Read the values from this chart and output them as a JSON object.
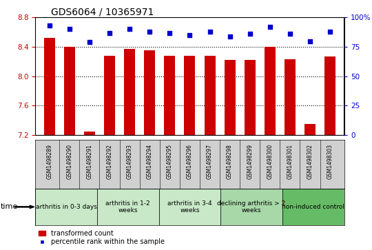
{
  "title": "GDS6064 / 10365971",
  "samples": [
    "GSM1498289",
    "GSM1498290",
    "GSM1498291",
    "GSM1498292",
    "GSM1498293",
    "GSM1498294",
    "GSM1498295",
    "GSM1498296",
    "GSM1498297",
    "GSM1498298",
    "GSM1498299",
    "GSM1498300",
    "GSM1498301",
    "GSM1498302",
    "GSM1498303"
  ],
  "transformed_count": [
    8.52,
    8.4,
    7.25,
    8.28,
    8.37,
    8.35,
    8.28,
    8.28,
    8.28,
    8.22,
    8.22,
    8.4,
    8.23,
    7.35,
    8.27
  ],
  "percentile_rank": [
    93,
    90,
    79,
    87,
    90,
    88,
    87,
    85,
    88,
    84,
    86,
    92,
    86,
    80,
    88
  ],
  "groups": [
    {
      "label": "arthritis in 0-3 days",
      "start": 0,
      "end": 3,
      "color": "#c8e8c8"
    },
    {
      "label": "arthritis in 1-2\nweeks",
      "start": 3,
      "end": 6,
      "color": "#c8e8c8"
    },
    {
      "label": "arthritis in 3-4\nweeks",
      "start": 6,
      "end": 9,
      "color": "#c8e8c8"
    },
    {
      "label": "declining arthritis > 2\nweeks",
      "start": 9,
      "end": 12,
      "color": "#a8d8a8"
    },
    {
      "label": "non-induced control",
      "start": 12,
      "end": 15,
      "color": "#66bb66"
    }
  ],
  "ylim_left": [
    7.2,
    8.8
  ],
  "ylim_right": [
    0,
    100
  ],
  "yticks_left": [
    7.2,
    7.6,
    8.0,
    8.4,
    8.8
  ],
  "yticks_right": [
    0,
    25,
    50,
    75,
    100
  ],
  "bar_color": "#cc0000",
  "dot_color": "#0000cc",
  "bar_width": 0.55,
  "grid_color": "#000000",
  "background_color": "#ffffff",
  "legend_bar_label": "transformed count",
  "legend_dot_label": "percentile rank within the sample",
  "title_fontsize": 10,
  "tick_fontsize": 7.5,
  "sample_fontsize": 5.5,
  "group_fontsize": 6.5,
  "legend_fontsize": 7
}
